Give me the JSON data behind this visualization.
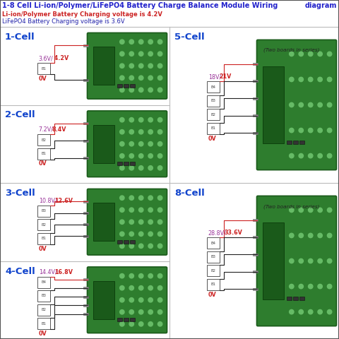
{
  "title_line1": "1-8 Cell Li-ion/Polymer/LiFePO4 Battery Charge Balance Module Wiring",
  "title_line2": "diagram",
  "subtitle1": "Li-ion/Polymer Battery Charging voltage is 4.2V",
  "subtitle2": "LiFePO4 Battery Charging voltage is 3.6V",
  "bg": "#ffffff",
  "title_color": "#2222cc",
  "sub1_color": "#cc2222",
  "sub2_color": "#2222aa",
  "label_color": "#1144cc",
  "note_color": "#222222",
  "board_face": "#2e7d2e",
  "board_edge": "#1a5a1a",
  "pad_color": "#66bb66",
  "ic_face": "#1a5a1a",
  "pin_face": "#999999",
  "cell_face": "#ffffff",
  "cell_edge": "#555555",
  "wire_black": "#222222",
  "wire_red": "#cc2222",
  "volt1_color": "#993399",
  "volt2_color": "#cc2222",
  "ov_color": "#cc2222",
  "sep_color": "#bbbbbb",
  "panels": [
    {
      "key": "1-Cell",
      "label": "1-Cell",
      "v1": "3.6V/",
      "v2": " 4.2V",
      "n": 1,
      "note": "",
      "col": 0,
      "row": 0
    },
    {
      "key": "2-Cell",
      "label": "2-Cell",
      "v1": "7.2V/",
      "v2": "8.4V",
      "n": 2,
      "note": "",
      "col": 0,
      "row": 1
    },
    {
      "key": "3-Cell",
      "label": "3-Cell",
      "v1": "10.8V/",
      "v2": "12.6V",
      "n": 3,
      "note": "",
      "col": 0,
      "row": 2
    },
    {
      "key": "4-Cell",
      "label": "4-Cell",
      "v1": "14.4V/",
      "v2": "16.8V",
      "n": 4,
      "note": "",
      "col": 0,
      "row": 3
    },
    {
      "key": "5-Cell",
      "label": "5-Cell",
      "v1": "18V/",
      "v2": "21V",
      "n": 4,
      "note": "(Two boards in series)",
      "col": 1,
      "row": 0
    },
    {
      "key": "8-Cell",
      "label": "8-Cell",
      "v1": "28.8V/",
      "v2": "33.6V",
      "n": 4,
      "note": "(Two boards in series)",
      "col": 1,
      "row": 2
    }
  ]
}
